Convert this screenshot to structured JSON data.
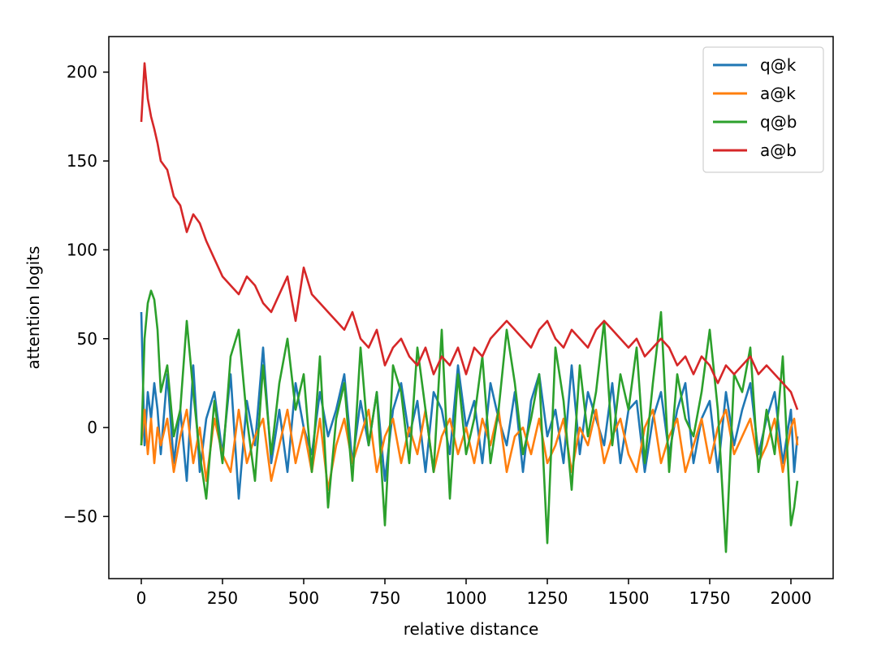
{
  "chart_data": {
    "type": "line",
    "title": "",
    "xlabel": "relative distance",
    "ylabel": "attention logits",
    "xlim": [
      -100,
      2130
    ],
    "ylim": [
      -85,
      220
    ],
    "xticks": [
      0,
      250,
      500,
      750,
      1000,
      1250,
      1500,
      1750,
      2000
    ],
    "yticks": [
      -50,
      0,
      50,
      100,
      150,
      200
    ],
    "xtick_labels": [
      "0",
      "250",
      "500",
      "750",
      "1000",
      "1250",
      "1500",
      "1750",
      "2000"
    ],
    "ytick_labels": [
      "−50",
      "0",
      "50",
      "100",
      "150",
      "200"
    ],
    "grid": false,
    "legend": "top-right",
    "x": [
      0,
      10,
      20,
      30,
      40,
      50,
      60,
      80,
      100,
      120,
      140,
      160,
      180,
      200,
      225,
      250,
      275,
      300,
      325,
      350,
      375,
      400,
      425,
      450,
      475,
      500,
      525,
      550,
      575,
      600,
      625,
      650,
      675,
      700,
      725,
      750,
      775,
      800,
      825,
      850,
      875,
      900,
      925,
      950,
      975,
      1000,
      1025,
      1050,
      1075,
      1100,
      1125,
      1150,
      1175,
      1200,
      1225,
      1250,
      1275,
      1300,
      1325,
      1350,
      1375,
      1400,
      1425,
      1450,
      1475,
      1500,
      1525,
      1550,
      1575,
      1600,
      1625,
      1650,
      1675,
      1700,
      1725,
      1750,
      1775,
      1800,
      1825,
      1850,
      1875,
      1900,
      1925,
      1950,
      1975,
      2000,
      2010,
      2020
    ],
    "series": [
      {
        "name": "q@k",
        "color": "#1f77b4",
        "values": [
          65,
          -10,
          20,
          5,
          25,
          10,
          -15,
          30,
          -20,
          10,
          -30,
          35,
          -25,
          5,
          20,
          -15,
          30,
          -40,
          15,
          -10,
          45,
          -20,
          10,
          -25,
          25,
          0,
          -15,
          20,
          -5,
          10,
          30,
          -20,
          15,
          -10,
          20,
          -30,
          10,
          25,
          -5,
          15,
          -25,
          20,
          10,
          -15,
          35,
          0,
          15,
          -20,
          25,
          5,
          -10,
          20,
          -25,
          15,
          30,
          -5,
          10,
          -20,
          35,
          -15,
          20,
          5,
          -10,
          25,
          -20,
          10,
          15,
          -25,
          5,
          20,
          -15,
          10,
          25,
          -20,
          5,
          15,
          -25,
          20,
          -10,
          10,
          25,
          -15,
          5,
          20,
          -20,
          10,
          -25,
          -5
        ]
      },
      {
        "name": "a@k",
        "color": "#ff7f0e",
        "values": [
          -10,
          10,
          -15,
          5,
          -20,
          0,
          -10,
          5,
          -25,
          -5,
          10,
          -20,
          0,
          -30,
          5,
          -15,
          -25,
          10,
          -20,
          -5,
          5,
          -30,
          -10,
          10,
          -20,
          0,
          -25,
          5,
          -35,
          -10,
          5,
          -20,
          -5,
          10,
          -25,
          -5,
          5,
          -20,
          0,
          -15,
          10,
          -25,
          -5,
          5,
          -15,
          0,
          -20,
          5,
          -10,
          10,
          -25,
          -5,
          0,
          -15,
          5,
          -20,
          -10,
          5,
          -25,
          0,
          -10,
          10,
          -20,
          -5,
          5,
          -15,
          -25,
          0,
          10,
          -20,
          -5,
          5,
          -25,
          -10,
          5,
          -20,
          0,
          10,
          -15,
          -5,
          5,
          -20,
          -10,
          5,
          -25,
          0,
          5,
          -10
        ]
      },
      {
        "name": "q@b",
        "color": "#2ca02c",
        "values": [
          -10,
          50,
          70,
          77,
          72,
          55,
          20,
          35,
          -5,
          10,
          60,
          20,
          -15,
          -40,
          15,
          -20,
          40,
          55,
          5,
          -30,
          35,
          -15,
          25,
          50,
          10,
          30,
          -25,
          40,
          -45,
          5,
          25,
          -30,
          45,
          -10,
          20,
          -55,
          35,
          20,
          -20,
          45,
          10,
          -25,
          55,
          -40,
          30,
          -15,
          5,
          40,
          -20,
          10,
          55,
          25,
          -15,
          5,
          30,
          -65,
          45,
          15,
          -35,
          35,
          -5,
          20,
          60,
          -10,
          30,
          10,
          45,
          -20,
          25,
          65,
          -25,
          30,
          5,
          -5,
          20,
          55,
          10,
          -70,
          30,
          20,
          45,
          -25,
          10,
          -15,
          40,
          -55,
          -45,
          -30
        ]
      },
      {
        "name": "a@b",
        "color": "#d62728",
        "values": [
          172,
          205,
          185,
          175,
          168,
          160,
          150,
          145,
          130,
          125,
          110,
          120,
          115,
          105,
          95,
          85,
          80,
          75,
          85,
          80,
          70,
          65,
          75,
          85,
          60,
          90,
          75,
          70,
          65,
          60,
          55,
          65,
          50,
          45,
          55,
          35,
          45,
          50,
          40,
          35,
          45,
          30,
          40,
          35,
          45,
          30,
          45,
          40,
          50,
          55,
          60,
          55,
          50,
          45,
          55,
          60,
          50,
          45,
          55,
          50,
          45,
          55,
          60,
          55,
          50,
          45,
          50,
          40,
          45,
          50,
          45,
          35,
          40,
          30,
          40,
          35,
          25,
          35,
          30,
          35,
          40,
          30,
          35,
          30,
          25,
          20,
          15,
          10
        ]
      }
    ]
  }
}
